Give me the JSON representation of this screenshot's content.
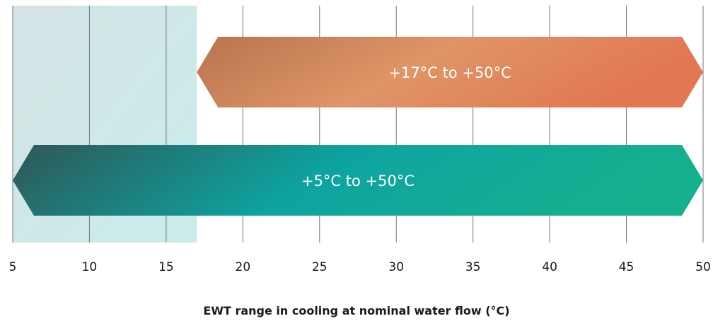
{
  "chart_data": {
    "type": "range-bar",
    "title": "",
    "xlabel": "EWT range in cooling at nominal water flow (°C)",
    "ylabel": "",
    "xlim": [
      5,
      50
    ],
    "xticks": [
      5,
      10,
      15,
      20,
      25,
      30,
      35,
      40,
      45,
      50
    ],
    "grid": "vertical",
    "shaded_region": {
      "from": 5,
      "to": 17,
      "color": "#cdeaea"
    },
    "ranges": [
      {
        "label": "+17°C to +50°C",
        "start": 17,
        "end": 50,
        "color_start": "#b8734f",
        "color_mid": "#df9566",
        "color_end": "#e27751"
      },
      {
        "label": "+5°C to +50°C",
        "start": 5,
        "end": 50,
        "color_start": "#2f5758",
        "color_mid": "#0da4a0",
        "color_end": "#15b08e"
      }
    ]
  }
}
